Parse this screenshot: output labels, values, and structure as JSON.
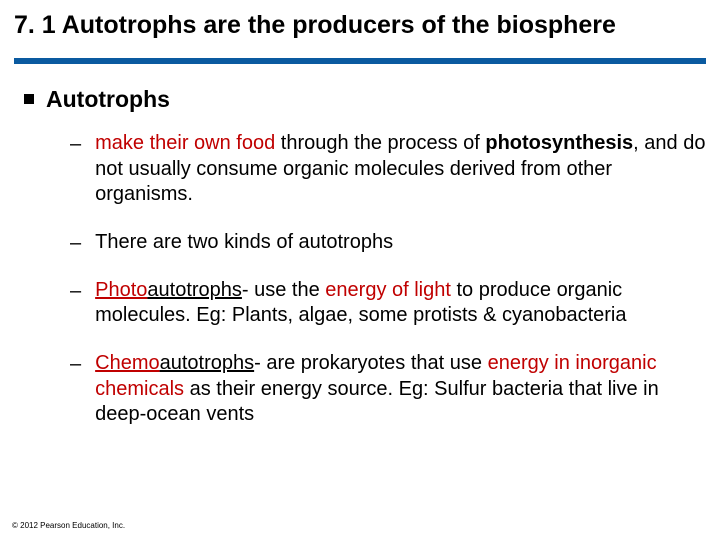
{
  "title": "7. 1 Autotrophs are the producers of the biosphere",
  "accent_color": "#0a5aa0",
  "main_heading": "Autotrophs",
  "items": [
    {
      "segments": [
        {
          "t": "make their own food",
          "r": true
        },
        {
          "t": " through the process of "
        },
        {
          "t": "photosynthesis",
          "b": true
        },
        {
          "t": ", and do not usually consume organic molecules derived from other organisms."
        }
      ]
    },
    {
      "segments": [
        {
          "t": "There are two kinds of autotrophs"
        }
      ]
    },
    {
      "segments": [
        {
          "t": "Photo",
          "u": true,
          "r": true
        },
        {
          "t": "autotrophs",
          "u": true
        },
        {
          "t": "- use the "
        },
        {
          "t": "energy of light",
          "r": true
        },
        {
          "t": " to produce organic molecules.  Eg: Plants, algae, some protists & cyanobacteria"
        }
      ]
    },
    {
      "segments": [
        {
          "t": "Chemo",
          "u": true,
          "r": true
        },
        {
          "t": "autotrophs",
          "u": true
        },
        {
          "t": "- are prokaryotes that use "
        },
        {
          "t": "energy in inorganic chemicals",
          "r": true
        },
        {
          "t": " as their energy source. Eg: Sulfur bacteria that live in deep-ocean vents"
        }
      ]
    }
  ],
  "footer": "© 2012 Pearson Education, Inc."
}
